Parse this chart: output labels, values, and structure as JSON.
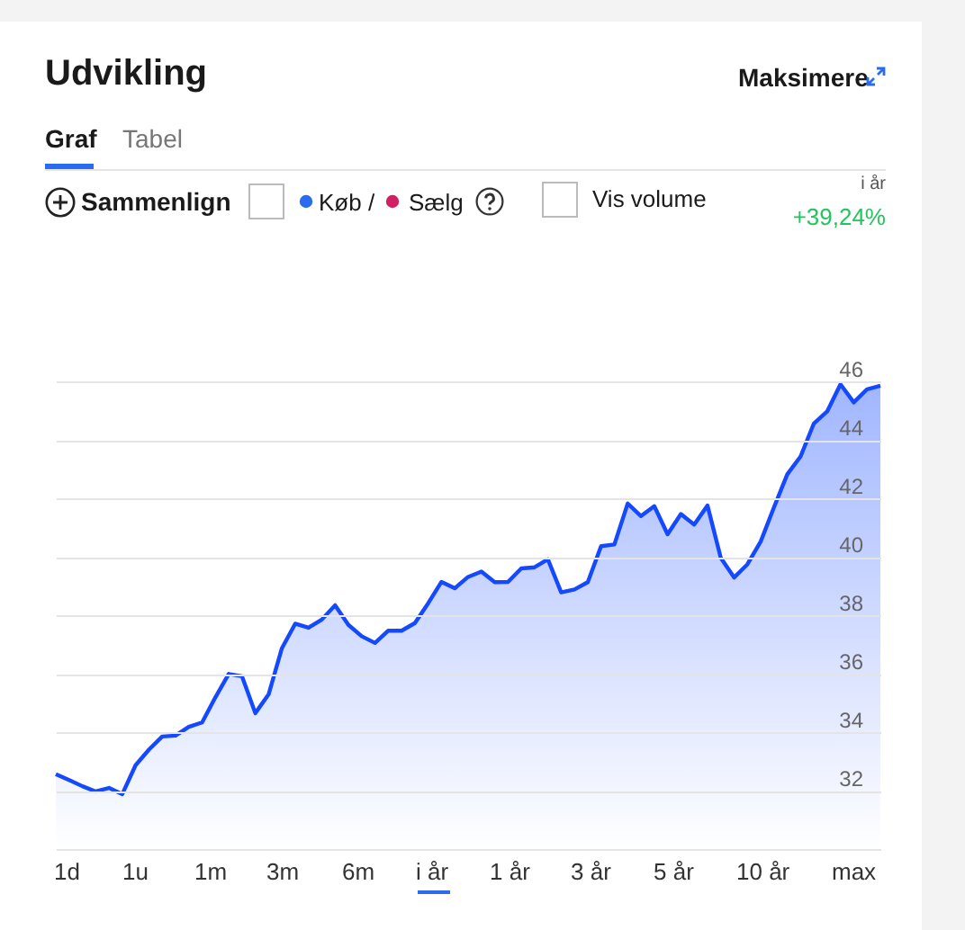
{
  "chart_data": {
    "type": "area",
    "title": "Udvikling",
    "annotations": [
      "Maksimere",
      "Graf",
      "Tabel",
      "Sammenlign",
      "Køb /",
      "Sælg",
      "Vis volume",
      "i år",
      "+39,24%",
      "1d",
      "1u",
      "1m",
      "3m",
      "6m",
      "i år",
      "1 år",
      "3 år",
      "5 år",
      "10 år",
      "max"
    ],
    "categories": [
      null,
      null,
      null,
      null,
      null,
      null,
      null,
      null,
      null,
      null,
      null,
      null,
      null,
      null,
      null,
      null,
      null,
      null,
      null,
      null,
      null,
      null,
      null,
      null,
      null,
      null,
      null,
      null,
      null,
      null,
      null,
      null,
      null,
      null,
      null,
      null,
      null,
      null,
      null,
      null,
      null,
      null,
      null,
      null,
      null,
      null,
      null,
      null,
      null,
      null,
      null,
      null,
      null,
      null,
      null,
      null,
      null,
      null,
      null,
      null,
      null,
      null,
      null
    ],
    "series": [
      {
        "color": "#1449ff",
        "values": [
          32.56,
          32.36,
          32.15,
          31.97,
          32.09,
          31.88,
          32.87,
          33.4,
          33.85,
          33.88,
          34.18,
          34.33,
          35.19,
          35.99,
          35.91,
          34.65,
          35.29,
          36.87,
          37.71,
          37.57,
          37.85,
          38.34,
          37.67,
          37.28,
          37.05,
          37.47,
          37.47,
          37.73,
          38.41,
          39.14,
          38.92,
          39.31,
          39.49,
          39.13,
          39.14,
          39.6,
          39.64,
          39.91,
          38.78,
          38.88,
          39.13,
          40.36,
          40.42,
          41.82,
          41.39,
          41.73,
          40.77,
          41.46,
          41.1,
          41.75,
          39.96,
          39.29,
          39.74,
          40.52,
          41.69,
          42.82,
          43.43,
          44.56,
          44.97,
          45.9,
          45.28,
          45.73,
          45.85
        ]
      }
    ],
    "ylim": [
      30,
      46
    ],
    "yticks": [
      {
        "value": 30,
        "label": null
      },
      32,
      34,
      36,
      38,
      40,
      42,
      44,
      46
    ],
    "grid": "y",
    "tick_labels": "y",
    "marker": "none",
    "line_style": "solid"
  }
}
